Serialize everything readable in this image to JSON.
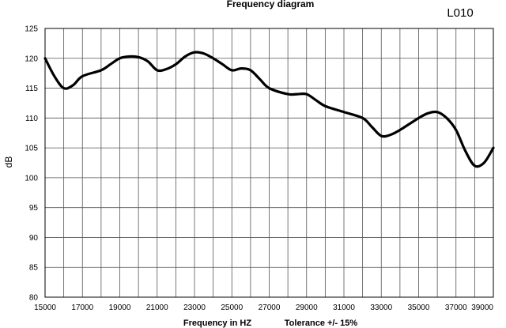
{
  "chart_data": {
    "type": "line",
    "title": "Frequency diagram",
    "model_label": "L010",
    "xlabel": "Frequency in  HZ",
    "tolerance_label": "Tolerance +/- 15%",
    "ylabel": "dB",
    "xlim": [
      15000,
      39000
    ],
    "ylim": [
      80,
      125
    ],
    "x_tick_labels": [
      "15000",
      "17000",
      "19000",
      "21000",
      "23000",
      "25000",
      "27000",
      "29000",
      "31000",
      "33000",
      "35000",
      "37000",
      "39000"
    ],
    "y_tick_labels": [
      "80",
      "85",
      "90",
      "95",
      "100",
      "105",
      "110",
      "115",
      "120",
      "125"
    ],
    "grid": true,
    "series": [
      {
        "color": "#000000",
        "points": [
          [
            15000,
            120
          ],
          [
            15500,
            117
          ],
          [
            16000,
            115
          ],
          [
            16500,
            115.5
          ],
          [
            17000,
            117
          ],
          [
            18000,
            118
          ],
          [
            18500,
            119
          ],
          [
            19000,
            120
          ],
          [
            19500,
            120.3
          ],
          [
            20000,
            120.2
          ],
          [
            20500,
            119.5
          ],
          [
            21000,
            118
          ],
          [
            21500,
            118.2
          ],
          [
            22000,
            119
          ],
          [
            22500,
            120.3
          ],
          [
            23000,
            121
          ],
          [
            23500,
            120.8
          ],
          [
            24000,
            120
          ],
          [
            24500,
            119
          ],
          [
            25000,
            118
          ],
          [
            25500,
            118.3
          ],
          [
            26000,
            118
          ],
          [
            26500,
            116.5
          ],
          [
            27000,
            115
          ],
          [
            28000,
            114
          ],
          [
            28500,
            114
          ],
          [
            29000,
            114
          ],
          [
            29500,
            113
          ],
          [
            30000,
            112
          ],
          [
            31000,
            111
          ],
          [
            32000,
            110
          ],
          [
            32500,
            108.5
          ],
          [
            33000,
            107
          ],
          [
            33500,
            107.2
          ],
          [
            34000,
            108
          ],
          [
            35000,
            110
          ],
          [
            35500,
            110.8
          ],
          [
            36000,
            111
          ],
          [
            36500,
            110
          ],
          [
            37000,
            108
          ],
          [
            37500,
            104.5
          ],
          [
            38000,
            102
          ],
          [
            38500,
            102.5
          ],
          [
            39000,
            105
          ]
        ]
      }
    ]
  }
}
